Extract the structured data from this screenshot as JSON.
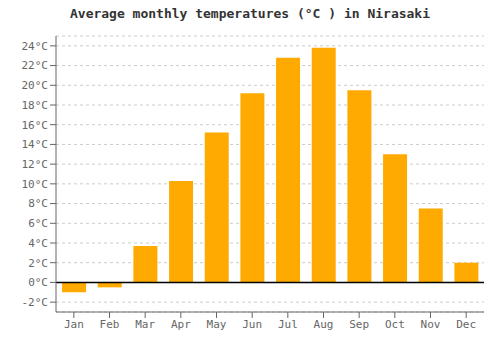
{
  "chart_data": {
    "type": "bar",
    "title": "Average monthly temperatures (°C ) in Nirasaki",
    "categories": [
      "Jan",
      "Feb",
      "Mar",
      "Apr",
      "May",
      "Jun",
      "Jul",
      "Aug",
      "Sep",
      "Oct",
      "Nov",
      "Dec"
    ],
    "values": [
      -1.0,
      -0.5,
      3.7,
      10.3,
      15.2,
      19.2,
      22.8,
      23.8,
      19.5,
      13.0,
      7.5,
      2.0
    ],
    "color": "#FFAA00",
    "ylim": [
      -3,
      25
    ],
    "yticks": [
      {
        "value": -2,
        "label": "-2°C"
      },
      {
        "value": 0,
        "label": "0°C"
      },
      {
        "value": 2,
        "label": "2°C"
      },
      {
        "value": 4,
        "label": "4°C"
      },
      {
        "value": 6,
        "label": "6°C"
      },
      {
        "value": 8,
        "label": "8°C"
      },
      {
        "value": 10,
        "label": "10°C"
      },
      {
        "value": 12,
        "label": "12°C"
      },
      {
        "value": 14,
        "label": "14°C"
      },
      {
        "value": 16,
        "label": "16°C"
      },
      {
        "value": 18,
        "label": "18°C"
      },
      {
        "value": 20,
        "label": "20°C"
      },
      {
        "value": 22,
        "label": "22°C"
      },
      {
        "value": 24,
        "label": "24°C"
      }
    ],
    "grid": true
  }
}
